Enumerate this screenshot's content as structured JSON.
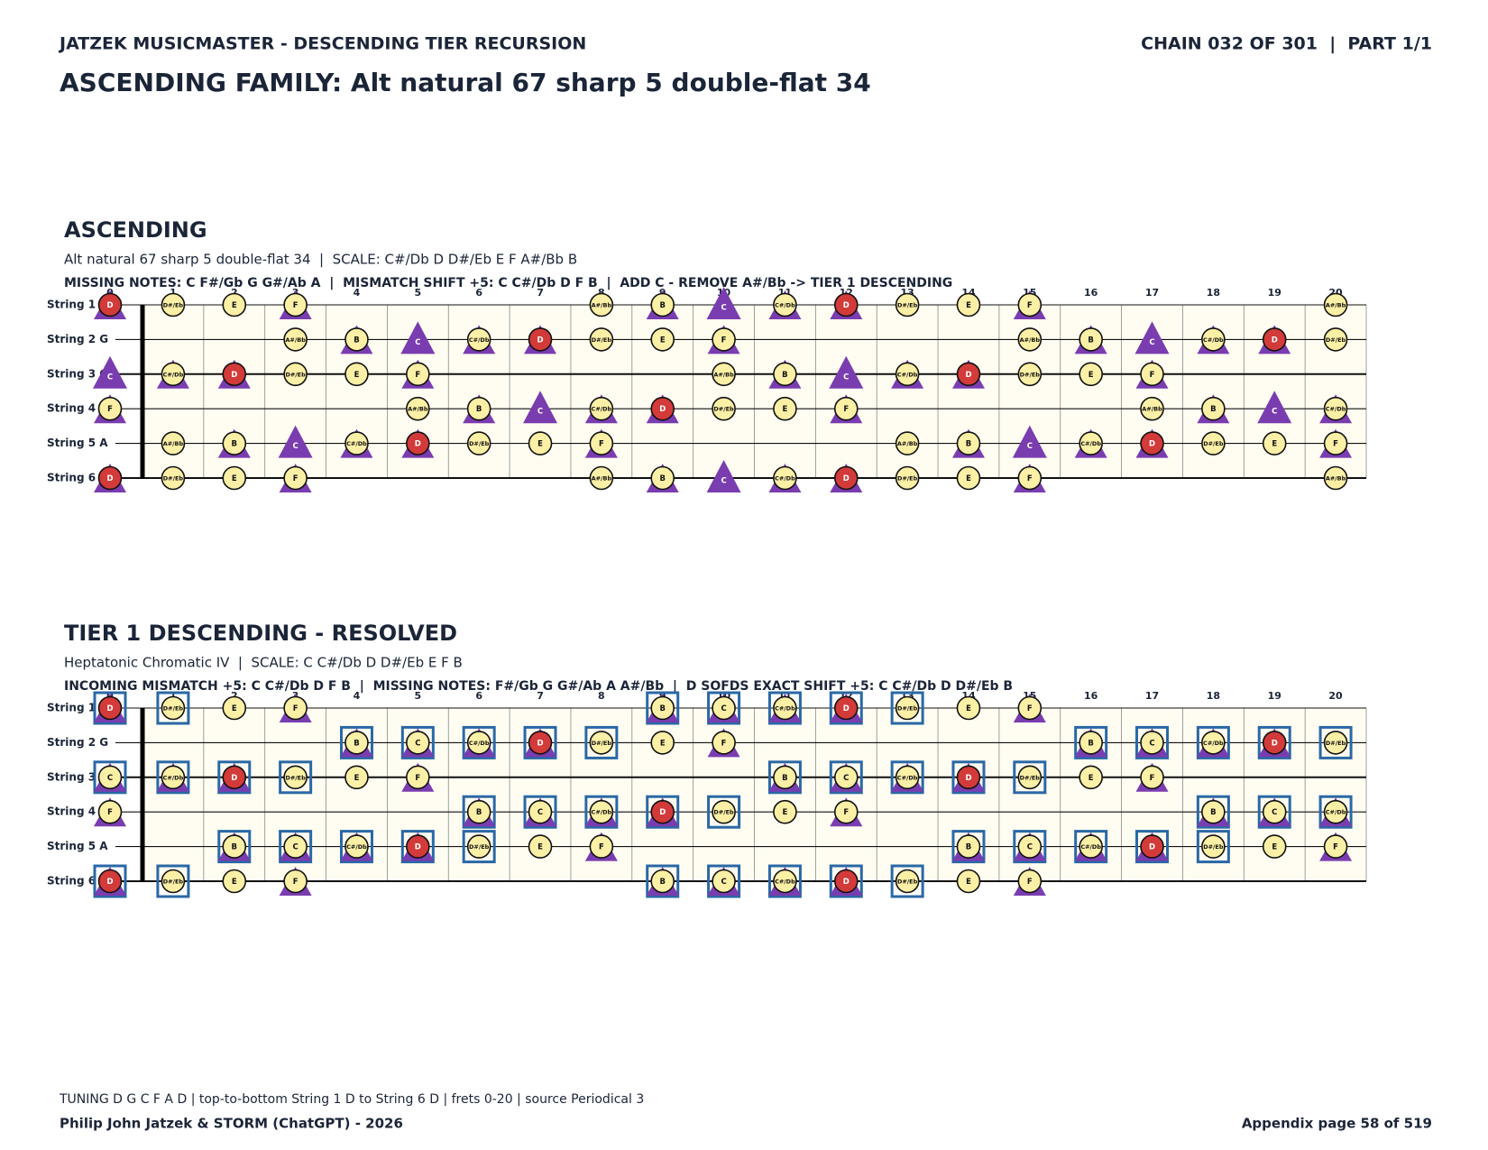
{
  "header": {
    "left": "JATZEK MUSICMASTER - DESCENDING TIER RECURSION",
    "right": "CHAIN 032 OF 301  |  PART 1/1",
    "title": "ASCENDING FAMILY: Alt natural 67 sharp 5 double-flat 34"
  },
  "boards": [
    {
      "heading": "ASCENDING",
      "subtitle": "Alt natural 67 sharp 5 double-flat 34  |  SCALE: C#/Db D D#/Eb E F A#/Bb B",
      "info": "MISSING NOTES: C F#/Gb G G#/Ab A  |  MISMATCH SHIFT +5: C C#/Db D F B  |  ADD C - REMOVE A#/Bb -> TIER 1 DESCENDING",
      "strings": [
        "String 1 D",
        "String 2 G",
        "String 3 C",
        "String 4 F",
        "String 5 A",
        "String 6 D"
      ],
      "frets": [
        0,
        1,
        2,
        3,
        4,
        5,
        6,
        7,
        8,
        9,
        10,
        11,
        12,
        13,
        14,
        15,
        16,
        17,
        18,
        19,
        20
      ],
      "root": "D",
      "scale_notes": [
        "C#/Db",
        "D",
        "D#/Eb",
        "E",
        "F",
        "A#/Bb",
        "B"
      ],
      "triangle_notes": [
        "C",
        "C#/Db",
        "D",
        "F",
        "B"
      ],
      "box_notes": [],
      "cells": [
        [
          "D",
          "D#/Eb",
          "E",
          "F",
          null,
          null,
          null,
          null,
          "A#/Bb",
          "B",
          "C",
          "C#/Db",
          "D",
          "D#/Eb",
          "E",
          "F",
          null,
          null,
          null,
          null,
          "A#/Bb"
        ],
        [
          null,
          null,
          null,
          "A#/Bb",
          "B",
          "C",
          "C#/Db",
          "D",
          "D#/Eb",
          "E",
          "F",
          null,
          null,
          null,
          null,
          "A#/Bb",
          "B",
          "C",
          "C#/Db",
          "D",
          "D#/Eb"
        ],
        [
          "C",
          "C#/Db",
          "D",
          "D#/Eb",
          "E",
          "F",
          null,
          null,
          null,
          null,
          "A#/Bb",
          "B",
          "C",
          "C#/Db",
          "D",
          "D#/Eb",
          "E",
          "F",
          null,
          null,
          null
        ],
        [
          "F",
          null,
          null,
          null,
          null,
          "A#/Bb",
          "B",
          "C",
          "C#/Db",
          "D",
          "D#/Eb",
          "E",
          "F",
          null,
          null,
          null,
          null,
          "A#/Bb",
          "B",
          "C",
          "C#/Db"
        ],
        [
          null,
          "A#/Bb",
          "B",
          "C",
          "C#/Db",
          "D",
          "D#/Eb",
          "E",
          "F",
          null,
          null,
          null,
          null,
          "A#/Bb",
          "B",
          "C",
          "C#/Db",
          "D",
          "D#/Eb",
          "E",
          "F"
        ],
        [
          "D",
          "D#/Eb",
          "E",
          "F",
          null,
          null,
          null,
          null,
          "A#/Bb",
          "B",
          "C",
          "C#/Db",
          "D",
          "D#/Eb",
          "E",
          "F",
          null,
          null,
          null,
          null,
          "A#/Bb"
        ]
      ]
    },
    {
      "heading": "TIER 1 DESCENDING - RESOLVED",
      "subtitle": "Heptatonic Chromatic IV  |  SCALE: C C#/Db D D#/Eb E F B",
      "info": "INCOMING MISMATCH +5: C C#/Db D F B  |  MISSING NOTES: F#/Gb G G#/Ab A A#/Bb  |  D SOFDS EXACT SHIFT +5: C C#/Db D D#/Eb B",
      "strings": [
        "String 1 D",
        "String 2 G",
        "String 3 C",
        "String 4 F",
        "String 5 A",
        "String 6 D"
      ],
      "frets": [
        0,
        1,
        2,
        3,
        4,
        5,
        6,
        7,
        8,
        9,
        10,
        11,
        12,
        13,
        14,
        15,
        16,
        17,
        18,
        19,
        20
      ],
      "root": "D",
      "scale_notes": [
        "C",
        "C#/Db",
        "D",
        "D#/Eb",
        "E",
        "F",
        "B"
      ],
      "triangle_notes": [
        "C",
        "C#/Db",
        "D",
        "F",
        "B"
      ],
      "box_notes": [
        "C",
        "C#/Db",
        "D",
        "D#/Eb",
        "B"
      ],
      "cells": [
        [
          "D",
          "D#/Eb",
          "E",
          "F",
          null,
          null,
          null,
          null,
          null,
          "B",
          "C",
          "C#/Db",
          "D",
          "D#/Eb",
          "E",
          "F",
          null,
          null,
          null,
          null,
          null
        ],
        [
          null,
          null,
          null,
          null,
          "B",
          "C",
          "C#/Db",
          "D",
          "D#/Eb",
          "E",
          "F",
          null,
          null,
          null,
          null,
          null,
          "B",
          "C",
          "C#/Db",
          "D",
          "D#/Eb"
        ],
        [
          "C",
          "C#/Db",
          "D",
          "D#/Eb",
          "E",
          "F",
          null,
          null,
          null,
          null,
          null,
          "B",
          "C",
          "C#/Db",
          "D",
          "D#/Eb",
          "E",
          "F",
          null,
          null,
          null
        ],
        [
          "F",
          null,
          null,
          null,
          null,
          null,
          "B",
          "C",
          "C#/Db",
          "D",
          "D#/Eb",
          "E",
          "F",
          null,
          null,
          null,
          null,
          null,
          "B",
          "C",
          "C#/Db"
        ],
        [
          null,
          null,
          "B",
          "C",
          "C#/Db",
          "D",
          "D#/Eb",
          "E",
          "F",
          null,
          null,
          null,
          null,
          null,
          "B",
          "C",
          "C#/Db",
          "D",
          "D#/Eb",
          "E",
          "F"
        ],
        [
          "D",
          "D#/Eb",
          "E",
          "F",
          null,
          null,
          null,
          null,
          null,
          "B",
          "C",
          "C#/Db",
          "D",
          "D#/Eb",
          "E",
          "F",
          null,
          null,
          null,
          null,
          null
        ]
      ]
    }
  ],
  "footer": {
    "note": "TUNING D G C F A D | top-to-bottom String 1 D to String 6 D | frets 0-20 | source Periodical 3",
    "credit": "Philip John Jatzek & STORM (ChatGPT) - 2026",
    "page": "Appendix page 58 of 519"
  }
}
